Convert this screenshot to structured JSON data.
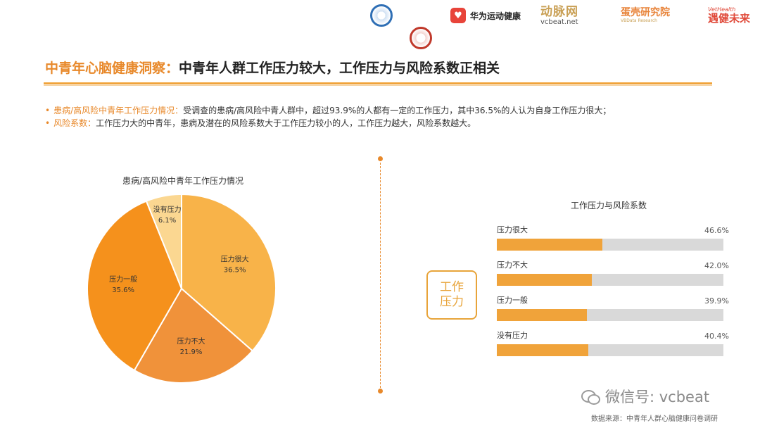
{
  "logos": {
    "huawei_label": "华为运动健康",
    "vcbeat_cn": "动脉网",
    "vcbeat_en": "vcbeat.net",
    "vbr_cn": "蛋壳研究院",
    "vbr_en": "VBData Research",
    "yjwl_en": "VetHealth",
    "yjwl_cn": "遇健未来"
  },
  "header": {
    "title_highlight": "中青年心脑健康洞察：",
    "title_main": "中青年人群工作压力较大，工作压力与风险系数正相关"
  },
  "bullets": [
    {
      "label": "患病/高风险中青年工作压力情况：",
      "text": "受调查的患病/高风险中青人群中，超过93.9%的人都有一定的工作压力，其中36.5%的人认为自身工作压力很大；"
    },
    {
      "label": "风险系数：",
      "text": "工作压力大的中青年，患病及潜在的风险系数大于工作压力较小的人，工作压力越大，风险系数越大。"
    }
  ],
  "accent_color": "#e8892b",
  "chart_data": [
    {
      "type": "pie",
      "title": "患病/高风险中青年工作压力情况",
      "slices": [
        {
          "label": "压力很大",
          "value": 36.5,
          "display": "36.5%",
          "color": "#f8b349"
        },
        {
          "label": "压力不大",
          "value": 21.9,
          "display": "21.9%",
          "color": "#f0923a"
        },
        {
          "label": "压力一般",
          "value": 35.6,
          "display": "35.6%",
          "color": "#f5911c"
        },
        {
          "label": "没有压力",
          "value": 6.1,
          "display": "6.1%",
          "color": "#fbd791"
        }
      ]
    },
    {
      "type": "bar",
      "orientation": "horizontal",
      "title": "工作压力与风险系数",
      "axis_label": "工作压力",
      "categories": [
        "压力很大",
        "压力不大",
        "压力一般",
        "没有压力"
      ],
      "values": [
        46.6,
        42.0,
        39.9,
        40.4
      ],
      "display": [
        "46.6%",
        "42.0%",
        "39.9%",
        "40.4%"
      ],
      "xlim": [
        0,
        100
      ],
      "bar_color": "#f0a33a",
      "track_color": "#d9d9d9"
    }
  ],
  "footer": {
    "wechat": "微信号: vcbeat",
    "source": "数据来源：中青年人群心脑健康问卷调研"
  }
}
